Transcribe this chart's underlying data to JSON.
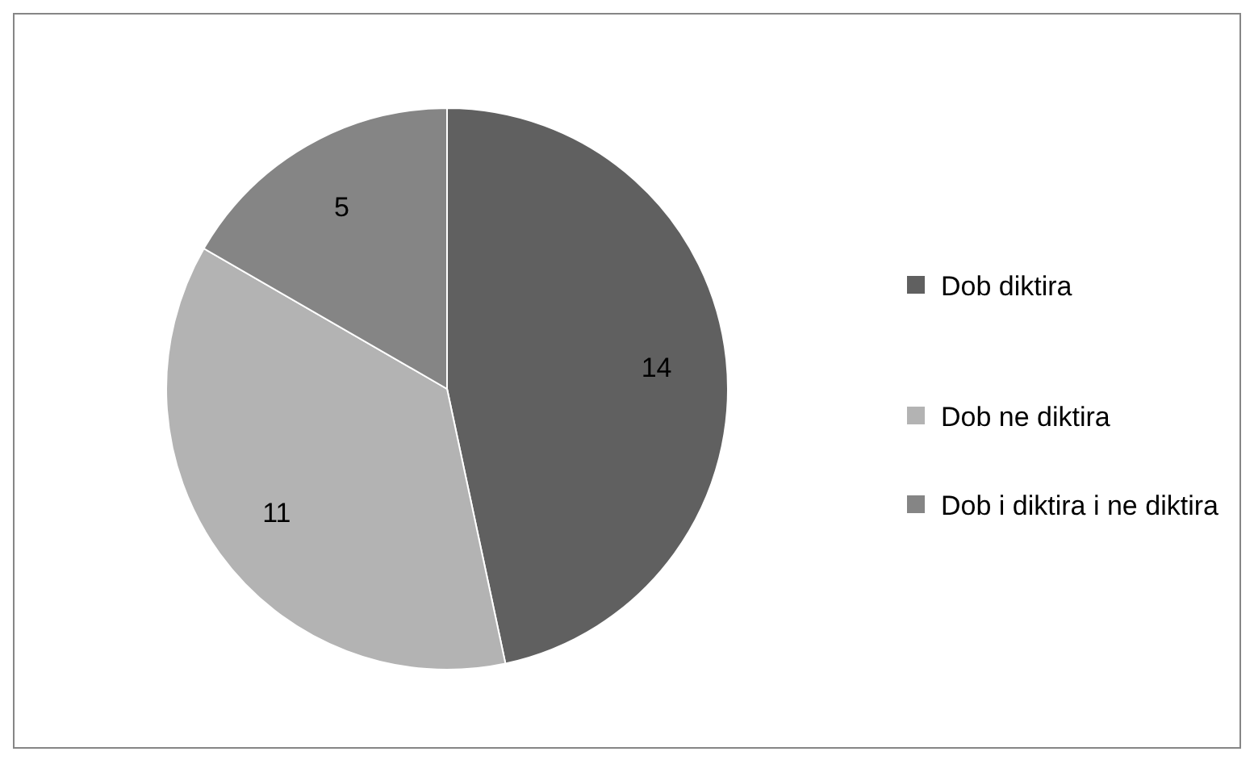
{
  "chart_data": {
    "type": "pie",
    "categories": [
      "Dob diktira",
      "Dob ne diktira",
      "Dob i diktira i ne diktira"
    ],
    "values": [
      14,
      11,
      5
    ],
    "colors": [
      "#606060",
      "#b3b3b3",
      "#858585"
    ],
    "data_labels": true,
    "legend": "right"
  }
}
